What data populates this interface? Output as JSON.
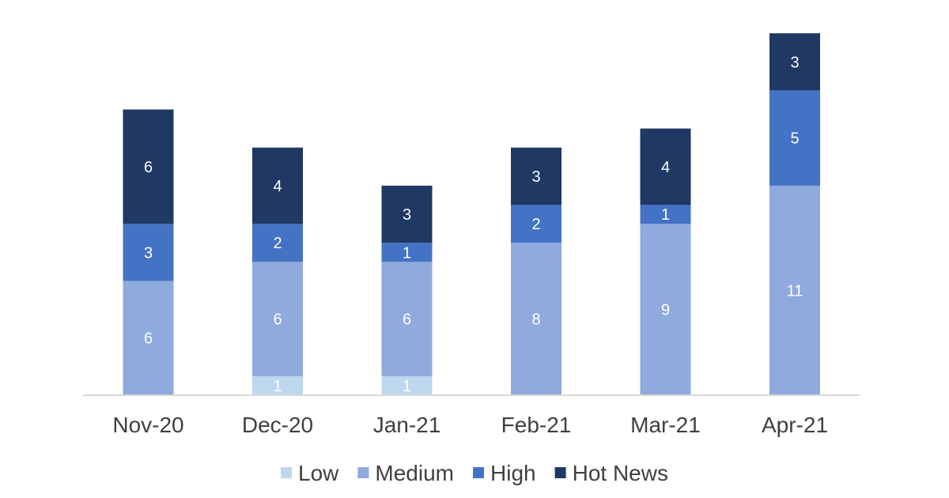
{
  "chart_data": {
    "type": "bar",
    "stacked": true,
    "categories": [
      "Nov-20",
      "Dec-20",
      "Jan-21",
      "Feb-21",
      "Mar-21",
      "Apr-21"
    ],
    "series": [
      {
        "name": "Low",
        "color": "#bdd7ee",
        "values": [
          0,
          1,
          1,
          0,
          0,
          0
        ]
      },
      {
        "name": "Medium",
        "color": "#8faadc",
        "values": [
          6,
          6,
          6,
          8,
          9,
          11
        ]
      },
      {
        "name": "High",
        "color": "#4472c4",
        "values": [
          3,
          2,
          1,
          2,
          1,
          5
        ]
      },
      {
        "name": "Hot News",
        "color": "#1f3864",
        "values": [
          6,
          4,
          3,
          3,
          4,
          3
        ]
      }
    ],
    "ylim": [
      0,
      19
    ],
    "grid": false,
    "legend_position": "bottom",
    "data_labels": true
  }
}
